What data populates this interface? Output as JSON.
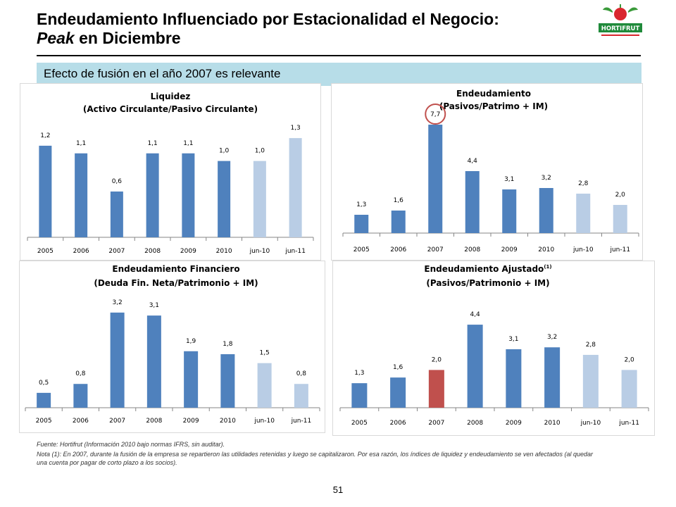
{
  "header": {
    "title_line1": "Endeudamiento Influenciado por Estacionalidad el Negocio:",
    "title_line2_em": "Peak",
    "title_line2_rest": " en Diciembre",
    "logo_text": "HORTIFRUT",
    "subtitle": "Efecto de fusión en el año 2007 es relevante"
  },
  "colors": {
    "bar_dark": "#4f81bd",
    "bar_light": "#b9cde5",
    "bar_red": "#c0504d",
    "circle": "#c0504d",
    "subtitle_bg": "#b7dde8"
  },
  "chart_data": [
    {
      "type": "bar",
      "title": "Liquidez",
      "subtitle": "(Activo Circulante/Pasivo Circulante)",
      "categories": [
        "2005",
        "2006",
        "2007",
        "2008",
        "2009",
        "2010",
        "jun-10",
        "jun-11"
      ],
      "values": [
        1.2,
        1.1,
        0.6,
        1.1,
        1.1,
        1.0,
        1.0,
        1.3
      ],
      "labels": [
        "1,2",
        "1,1",
        "0,6",
        "1,1",
        "1,1",
        "1,0",
        "1,0",
        "1,3"
      ],
      "bar_colors": [
        "dark",
        "dark",
        "dark",
        "dark",
        "dark",
        "dark",
        "light",
        "light"
      ],
      "ylim": [
        0,
        1.55
      ]
    },
    {
      "type": "bar",
      "title": "Endeudamiento",
      "subtitle": "(Pasivos/Patrimo + IM)",
      "categories": [
        "2005",
        "2006",
        "2007",
        "2008",
        "2009",
        "2010",
        "jun-10",
        "jun-11"
      ],
      "values": [
        1.3,
        1.6,
        7.7,
        4.4,
        3.1,
        3.2,
        2.8,
        2.0
      ],
      "labels": [
        "1,3",
        "1,6",
        "7,7",
        "4,4",
        "3,1",
        "3,2",
        "2,8",
        "2,0"
      ],
      "bar_colors": [
        "dark",
        "dark",
        "dark",
        "dark",
        "dark",
        "dark",
        "light",
        "light"
      ],
      "highlight_index": 2,
      "ylim": [
        0,
        8.5
      ]
    },
    {
      "type": "bar",
      "title": "Endeudamiento Financiero",
      "subtitle": "(Deuda Fin. Neta/Patrimonio + IM)",
      "categories": [
        "2005",
        "2006",
        "2007",
        "2008",
        "2009",
        "2010",
        "jun-10",
        "jun-11"
      ],
      "values": [
        0.5,
        0.8,
        3.2,
        3.1,
        1.9,
        1.8,
        1.5,
        0.8
      ],
      "labels": [
        "0,5",
        "0,8",
        "3,2",
        "3,1",
        "1,9",
        "1,8",
        "1,5",
        "0,8"
      ],
      "bar_colors": [
        "dark",
        "dark",
        "dark",
        "dark",
        "dark",
        "dark",
        "light",
        "light"
      ],
      "ylim": [
        0,
        3.6
      ]
    },
    {
      "type": "bar",
      "title": "Endeudamiento Ajustado",
      "title_sup": "(1)",
      "subtitle": "(Pasivos/Patrimonio + IM)",
      "categories": [
        "2005",
        "2006",
        "2007",
        "2008",
        "2009",
        "2010",
        "jun-10",
        "jun-11"
      ],
      "values": [
        1.3,
        1.6,
        2.0,
        4.4,
        3.1,
        3.2,
        2.8,
        2.0
      ],
      "labels": [
        "1,3",
        "1,6",
        "2,0",
        "4,4",
        "3,1",
        "3,2",
        "2,8",
        "2,0"
      ],
      "bar_colors": [
        "dark",
        "dark",
        "red",
        "dark",
        "dark",
        "dark",
        "light",
        "light"
      ],
      "ylim": [
        0,
        5.0
      ]
    }
  ],
  "footer": {
    "source": "Fuente: Hortifrut (Información 2010 bajo normas IFRS, sin auditar).",
    "note": "Nota (1): En 2007, durante la fusión de la empresa se repartieron las utilidades retenidas y luego se capitalizaron. Por esa razón, los índices de liquidez y endeudamiento se ven afectados (al quedar una cuenta por pagar de corto plazo a los socios).",
    "page_number": "51"
  }
}
